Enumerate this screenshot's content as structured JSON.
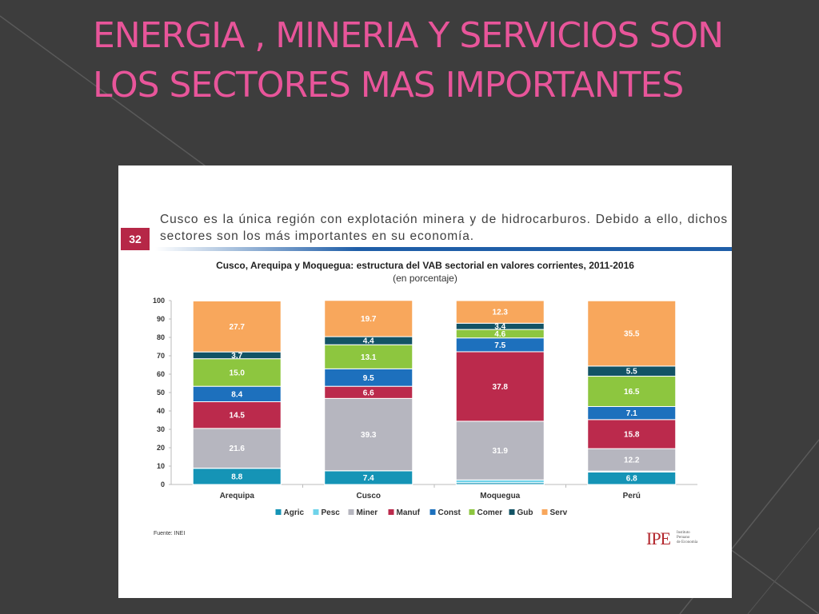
{
  "slide": {
    "title": "ENERGIA , MINERIA Y SERVICIOS SON LOS SECTORES MAS IMPORTANTES"
  },
  "panel": {
    "page_number": "32",
    "header_text": "Cusco es la única región con explotación minera y de hidrocarburos. Debido a ello, dichos sectores son los más importantes en su economía.",
    "source": "Fuente: INEI",
    "logo": {
      "main": "IPE",
      "sub": [
        "Instituto",
        "Peruano",
        "de Economía"
      ]
    }
  },
  "chart_data": {
    "type": "bar",
    "stacked": true,
    "title": "Cusco, Arequipa y Moquegua: estructura del VAB sectorial en valores corrientes, 2011-2016",
    "subtitle": "(en porcentaje)",
    "xlabel": "",
    "ylabel": "",
    "ylim": [
      0,
      100
    ],
    "yticks": [
      0,
      10,
      20,
      30,
      40,
      50,
      60,
      70,
      80,
      90,
      100
    ],
    "grid": false,
    "legend_position": "bottom",
    "categories": [
      "Arequipa",
      "Cusco",
      "Moquegua",
      "Perú"
    ],
    "series": [
      {
        "name": "Agric",
        "color": "#1594b6",
        "values": [
          8.8,
          7.4,
          1.0,
          6.8
        ],
        "labels": [
          "8.8",
          "7.4",
          "",
          "6.8"
        ]
      },
      {
        "name": "Pesc",
        "color": "#6fd3ea",
        "values": [
          0.1,
          0.1,
          1.5,
          0.5
        ],
        "labels": [
          "",
          "",
          "",
          ""
        ]
      },
      {
        "name": "Miner",
        "color": "#b6b6bf",
        "values": [
          21.6,
          39.3,
          31.9,
          12.2
        ],
        "labels": [
          "21.6",
          "39.3",
          "31.9",
          "12.2"
        ]
      },
      {
        "name": "Manuf",
        "color": "#bb2a4c",
        "values": [
          14.5,
          6.6,
          37.8,
          15.8
        ],
        "labels": [
          "14.5",
          "6.6",
          "37.8",
          "15.8"
        ]
      },
      {
        "name": "Const",
        "color": "#1d70bd",
        "values": [
          8.4,
          9.5,
          7.5,
          7.1
        ],
        "labels": [
          "8.4",
          "9.5",
          "7.5",
          "7.1"
        ]
      },
      {
        "name": "Comer",
        "color": "#8dc63f",
        "values": [
          15.0,
          13.1,
          4.6,
          16.5
        ],
        "labels": [
          "15.0",
          "13.1",
          "4.6",
          "16.5"
        ]
      },
      {
        "name": "Gub",
        "color": "#135365",
        "values": [
          3.7,
          4.4,
          3.4,
          5.5
        ],
        "labels": [
          "3.7",
          "4.4",
          "3.4",
          "5.5"
        ]
      },
      {
        "name": "Serv",
        "color": "#f8a75c",
        "values": [
          27.7,
          19.7,
          12.3,
          35.5
        ],
        "labels": [
          "27.7",
          "19.7",
          "12.3",
          "35.5"
        ]
      }
    ]
  }
}
